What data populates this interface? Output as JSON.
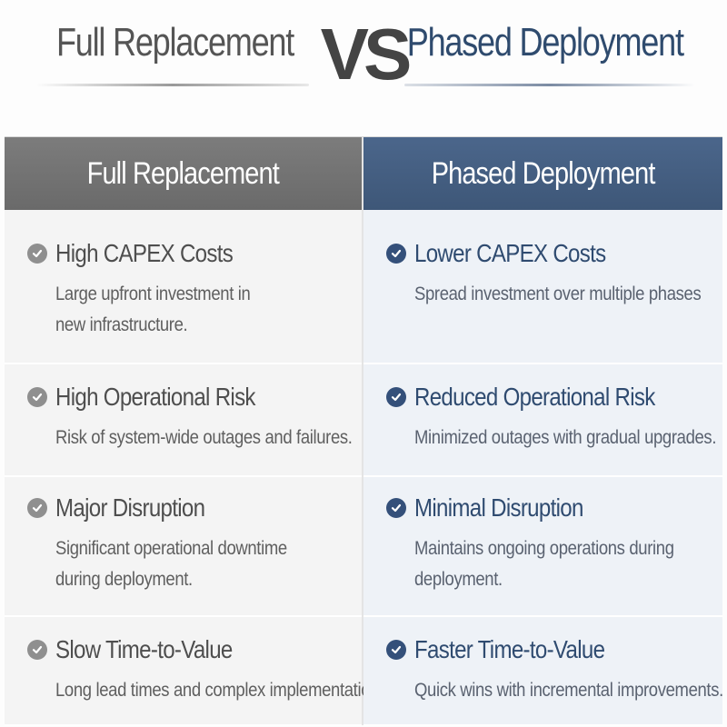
{
  "header": {
    "left_title": "Full Replacement",
    "vs": "VS",
    "right_title": "Phased Deployment"
  },
  "colors": {
    "left_header": "#6f6f6f",
    "right_header": "#415b7e",
    "left_check": "#8f8f8f",
    "right_check": "#34507a"
  },
  "columns": [
    {
      "heading": "Full Replacement",
      "items": [
        {
          "title": "High CAPEX Costs",
          "desc_lines": [
            "Large upfront investment in",
            "new infrastructure."
          ],
          "icon": "check-circle-icon"
        },
        {
          "title": "High Operational Risk",
          "desc_lines": [
            "Risk of system-wide outages and failures."
          ],
          "icon": "check-circle-icon"
        },
        {
          "title": "Major Disruption",
          "desc_lines": [
            "Significant operational downtime",
            "during deployment."
          ],
          "icon": "check-circle-icon"
        },
        {
          "title": "Slow Time-to-Value",
          "desc_lines": [
            "Long lead times and complex implementation."
          ],
          "icon": "check-circle-icon"
        }
      ]
    },
    {
      "heading": "Phased Deployment",
      "items": [
        {
          "title": "Lower CAPEX Costs",
          "desc_lines": [
            "Spread investment over multiple phases"
          ],
          "icon": "check-circle-icon"
        },
        {
          "title": "Reduced Operational Risk",
          "desc_lines": [
            "Minimized outages with gradual upgrades."
          ],
          "icon": "check-circle-icon"
        },
        {
          "title": "Minimal Disruption",
          "desc_lines": [
            "Maintains ongoing operations during",
            "deployment."
          ],
          "icon": "check-circle-icon"
        },
        {
          "title": "Faster Time-to-Value",
          "desc_lines": [
            "Quick wins with incremental improvements."
          ],
          "icon": "check-circle-icon"
        }
      ]
    }
  ]
}
